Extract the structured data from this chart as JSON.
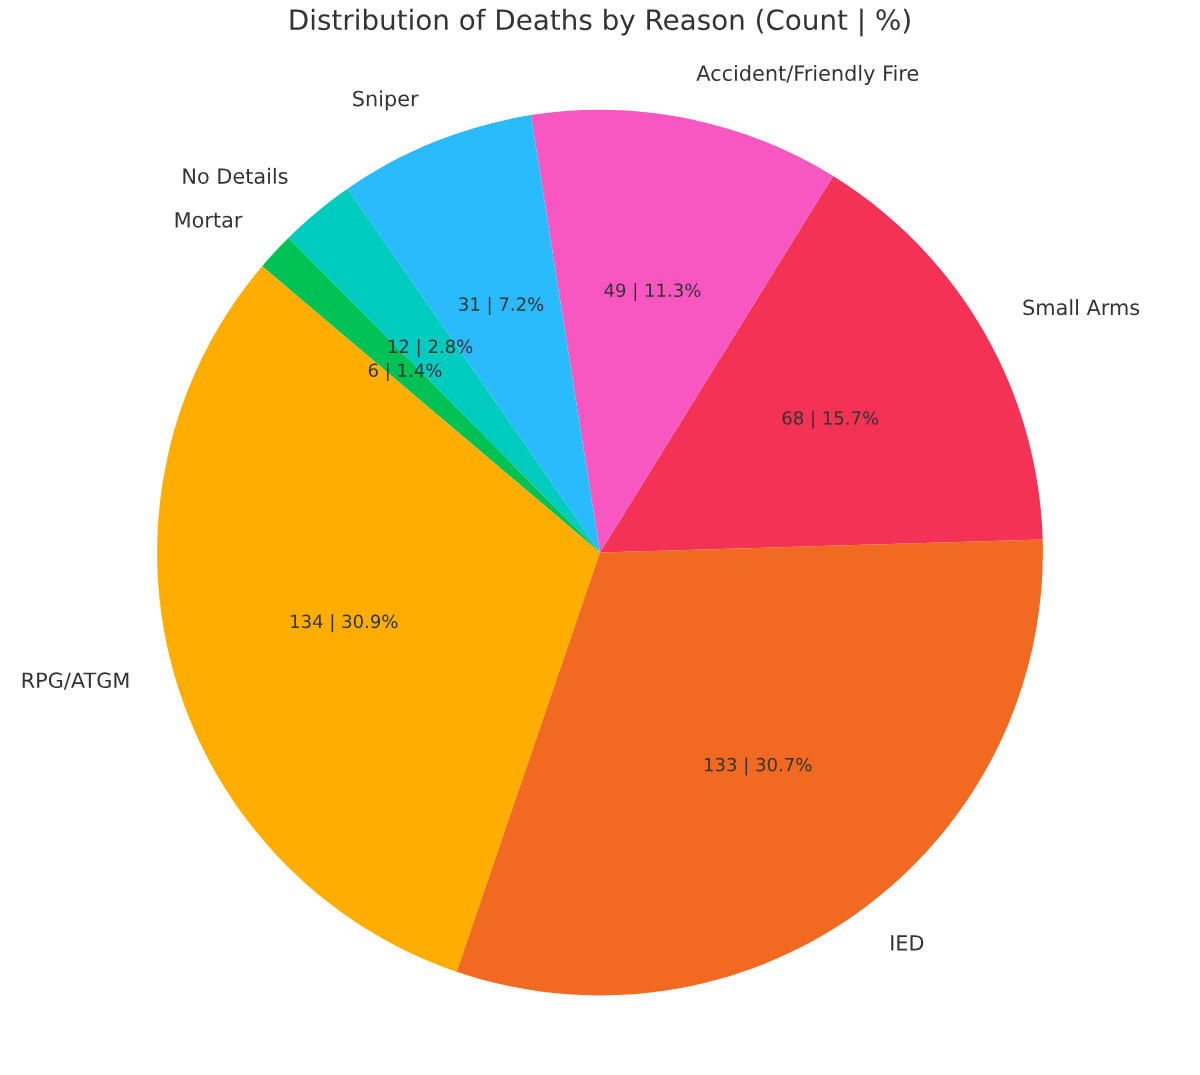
{
  "chart_data": {
    "type": "pie",
    "title": "Distribution of Deaths by Reason (Count | %)",
    "categories": [
      "Small Arms",
      "Accident/Friendly Fire",
      "Sniper",
      "No Details",
      "Mortar",
      "RPG/ATGM",
      "IED"
    ],
    "values": [
      68,
      49,
      31,
      12,
      6,
      134,
      133
    ],
    "colors": [
      "#f43256",
      "#f857c1",
      "#29bbfc",
      "#00cbbf",
      "#00c153",
      "#ffae00",
      "#f26922"
    ],
    "value_labels": [
      "68 | 15.7%",
      "49 | 11.3%",
      "31 | 7.2%",
      "12 | 2.8%",
      "6 | 1.4%",
      "134 | 30.9%",
      "133 | 30.7%"
    ]
  }
}
